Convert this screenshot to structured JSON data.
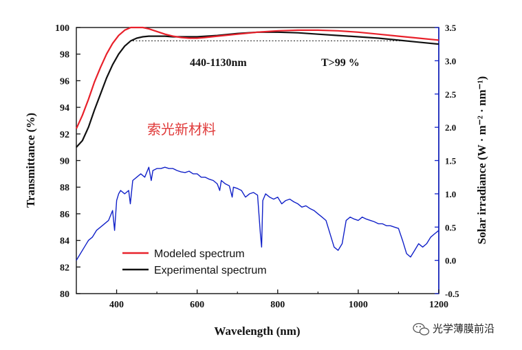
{
  "chart_data": {
    "type": "line",
    "xlabel": "Wavelength (nm)",
    "ylabel_left": "Transmittance (%)",
    "ylabel_right": "Solar irradiance (W · m⁻² · nm⁻¹)",
    "xlim": [
      300,
      1200
    ],
    "ylim_left": [
      80,
      100
    ],
    "ylim_right": [
      -0.5,
      3.5
    ],
    "x_ticks": [
      400,
      600,
      800,
      1000,
      1200
    ],
    "y_ticks_left": [
      80,
      82,
      84,
      86,
      88,
      90,
      92,
      94,
      96,
      98,
      100
    ],
    "y_ticks_right": [
      -0.5,
      0.0,
      0.5,
      1.0,
      1.5,
      2.0,
      2.5,
      3.0,
      3.5
    ],
    "x_tick_labels": [
      "400",
      "600",
      "800",
      "1000",
      "1200"
    ],
    "y_tick_labels_left": [
      "80",
      "82",
      "84",
      "86",
      "88",
      "90",
      "92",
      "94",
      "96",
      "98",
      "100"
    ],
    "y_tick_labels_right": [
      "-0.5",
      "0.0",
      "0.5",
      "1.0",
      "1.5",
      "2.0",
      "2.5",
      "3.0",
      "3.5"
    ],
    "series": [
      {
        "name": "Modeled spectrum",
        "axis": "left",
        "color": "#e8202a",
        "x": [
          300,
          315,
          330,
          345,
          360,
          375,
          390,
          405,
          420,
          435,
          450,
          465,
          480,
          500,
          520,
          540,
          560,
          580,
          600,
          620,
          650,
          700,
          750,
          800,
          850,
          900,
          950,
          1000,
          1050,
          1100,
          1150,
          1200
        ],
        "y": [
          92.4,
          93.4,
          94.6,
          95.9,
          97.0,
          98.0,
          98.8,
          99.4,
          99.8,
          100.0,
          100.0,
          100.0,
          99.9,
          99.7,
          99.5,
          99.35,
          99.25,
          99.2,
          99.2,
          99.25,
          99.35,
          99.5,
          99.65,
          99.75,
          99.8,
          99.8,
          99.75,
          99.65,
          99.5,
          99.35,
          99.2,
          99.05
        ]
      },
      {
        "name": "Experimental spectrum",
        "axis": "left",
        "color": "#111111",
        "x": [
          300,
          315,
          330,
          345,
          360,
          375,
          390,
          405,
          420,
          435,
          450,
          465,
          480,
          500,
          520,
          540,
          560,
          580,
          600,
          650,
          700,
          750,
          800,
          850,
          900,
          950,
          1000,
          1050,
          1100,
          1150,
          1200
        ],
        "y": [
          91.0,
          91.5,
          92.5,
          93.8,
          95.0,
          96.2,
          97.2,
          98.0,
          98.6,
          99.0,
          99.2,
          99.3,
          99.35,
          99.35,
          99.35,
          99.3,
          99.3,
          99.3,
          99.3,
          99.4,
          99.55,
          99.65,
          99.65,
          99.6,
          99.5,
          99.4,
          99.3,
          99.2,
          99.05,
          98.9,
          98.75
        ]
      },
      {
        "name": "Solar irradiance",
        "axis": "right",
        "color": "#1020c8",
        "x": [
          300,
          310,
          320,
          330,
          340,
          350,
          360,
          370,
          380,
          390,
          395,
          400,
          405,
          410,
          420,
          430,
          434,
          440,
          450,
          460,
          470,
          480,
          486,
          490,
          500,
          510,
          520,
          530,
          540,
          550,
          560,
          570,
          580,
          590,
          600,
          610,
          620,
          630,
          640,
          650,
          656,
          660,
          670,
          680,
          687,
          690,
          700,
          710,
          720,
          730,
          740,
          750,
          757,
          760,
          763,
          770,
          780,
          790,
          800,
          810,
          820,
          830,
          840,
          850,
          860,
          870,
          880,
          890,
          900,
          910,
          920,
          930,
          940,
          950,
          960,
          970,
          980,
          990,
          1000,
          1010,
          1020,
          1030,
          1040,
          1050,
          1060,
          1070,
          1080,
          1090,
          1100,
          1110,
          1120,
          1130,
          1140,
          1150,
          1160,
          1170,
          1180,
          1190,
          1200
        ],
        "y": [
          0.0,
          0.1,
          0.2,
          0.3,
          0.35,
          0.45,
          0.5,
          0.55,
          0.6,
          0.75,
          0.45,
          0.9,
          1.0,
          1.05,
          1.0,
          1.05,
          0.85,
          1.2,
          1.25,
          1.3,
          1.25,
          1.4,
          1.2,
          1.35,
          1.38,
          1.38,
          1.4,
          1.38,
          1.38,
          1.35,
          1.33,
          1.32,
          1.34,
          1.3,
          1.3,
          1.25,
          1.25,
          1.22,
          1.2,
          1.15,
          1.05,
          1.2,
          1.15,
          1.12,
          0.95,
          1.1,
          1.08,
          1.05,
          0.95,
          1.0,
          1.02,
          0.98,
          0.4,
          0.2,
          0.9,
          1.0,
          0.95,
          0.92,
          0.95,
          0.85,
          0.9,
          0.92,
          0.88,
          0.85,
          0.8,
          0.82,
          0.78,
          0.75,
          0.7,
          0.65,
          0.6,
          0.4,
          0.2,
          0.15,
          0.25,
          0.6,
          0.65,
          0.62,
          0.6,
          0.65,
          0.62,
          0.6,
          0.58,
          0.55,
          0.55,
          0.52,
          0.52,
          0.5,
          0.48,
          0.3,
          0.1,
          0.05,
          0.15,
          0.25,
          0.2,
          0.25,
          0.35,
          0.4,
          0.45
        ]
      }
    ],
    "reference_line": {
      "axis": "left",
      "y": 99.0,
      "x_range": [
        440,
        1130
      ],
      "style": "dotted"
    },
    "legend": {
      "position": "bottom-left",
      "entries": [
        "Modeled spectrum",
        "Experimental spectrum"
      ]
    },
    "annotations": [
      {
        "text": "440-1130nm"
      },
      {
        "text": "T>99 %"
      }
    ]
  },
  "watermark": "索光新材料",
  "credit": "光学薄膜前沿",
  "credit_icon": "wechat-icon"
}
